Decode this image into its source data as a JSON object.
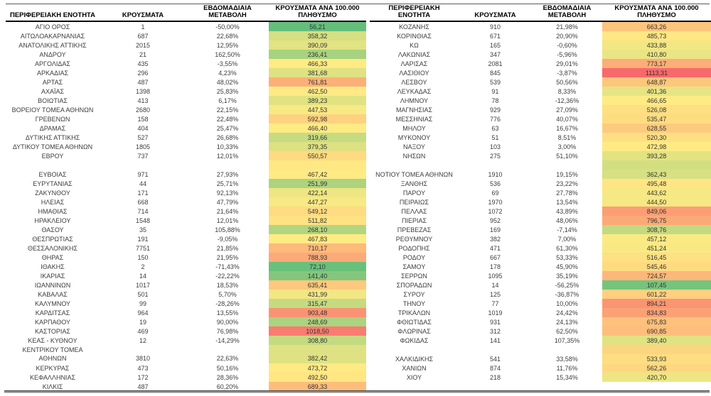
{
  "header": {
    "left": {
      "region": "ΠΕΡΙΦΕΡΕΙΑΚΗ ΕΝΟΤΗΤΑ",
      "cases": "ΚΡΟΥΣΜΑΤΑ",
      "change": "ΕΒΔΟΜΑΔΙΑΙΑ\nΜΕΤΑΒΟΛΗ",
      "rate": "ΚΡΟΥΣΜΑΤΑ ΑΝΑ 100.000\nΠΛΗΘΥΣΜΟ"
    },
    "right": {
      "region": "ΠΕΡΙΦΕΡΕΙΑΚΗ\nΕΝΟΤΗΤΑ",
      "cases": "ΚΡΟΥΣΜΑΤΑ",
      "change": "ΕΒΔΟΜΑΔΙΑΙΑ\nΜΕΤΑΒΟΛΗ",
      "rate": "ΚΡΟΥΣΜΑΤΑ ΑΝΑ 100.000\nΠΛΗΘΥΣΜΟ"
    }
  },
  "color_scale": {
    "min_color": "#63BE7B",
    "mid_color": "#FFEB84",
    "max_color": "#F8696B"
  },
  "tables": {
    "left": [
      {
        "name": "ΑΓΙΟ ΟΡΟΣ",
        "cases": "1",
        "change": "-50,00%",
        "rate": "56,21"
      },
      {
        "name": "ΑΙΤΩΛΟΑΚΑΡΝΑΝΙΑΣ",
        "cases": "687",
        "change": "22,68%",
        "rate": "358,32"
      },
      {
        "name": "ΑΝΑΤΟΛΙΚΗΣ ΑΤΤΙΚΗΣ",
        "cases": "2015",
        "change": "12,95%",
        "rate": "390,09"
      },
      {
        "name": "ΑΝΔΡΟΥ",
        "cases": "21",
        "change": "162,50%",
        "rate": "236,41"
      },
      {
        "name": "ΑΡΓΟΛΙΔΑΣ",
        "cases": "435",
        "change": "-3,55%",
        "rate": "466,33"
      },
      {
        "name": "ΑΡΚΑΔΙΑΣ",
        "cases": "296",
        "change": "4,23%",
        "rate": "381,68"
      },
      {
        "name": "ΑΡΤΑΣ",
        "cases": "487",
        "change": "48,02%",
        "rate": "761,81"
      },
      {
        "name": "ΑΧΑΪΑΣ",
        "cases": "1398",
        "change": "25,83%",
        "rate": "462,50"
      },
      {
        "name": "ΒΟΙΩΤΙΑΣ",
        "cases": "413",
        "change": "6,17%",
        "rate": "389,23"
      },
      {
        "name": "ΒΟΡΕΙΟΥ ΤΟΜΕΑ ΑΘΗΝΩΝ",
        "cases": "2680",
        "change": "22,15%",
        "rate": "447,53"
      },
      {
        "name": "ΓΡΕΒΕΝΩΝ",
        "cases": "158",
        "change": "22,48%",
        "rate": "592,98"
      },
      {
        "name": "ΔΡΑΜΑΣ",
        "cases": "404",
        "change": "25,47%",
        "rate": "466,40"
      },
      {
        "name": "ΔΥΤΙΚΗΣ ΑΤΤΙΚΗΣ",
        "cases": "527",
        "change": "26,68%",
        "rate": "319,66"
      },
      {
        "name": "ΔΥΤΙΚΟΥ ΤΟΜΕΑ ΑΘΗΝΩΝ",
        "cases": "1805",
        "change": "10,33%",
        "rate": "379,35"
      },
      {
        "name": "ΕΒΡΟΥ",
        "cases": "737",
        "change": "12,01%",
        "rate": "550,57"
      },
      {
        "spacer": true,
        "rate_color": "#FEE884"
      },
      {
        "name": "ΕΥΒΟΙΑΣ",
        "cases": "971",
        "change": "27,93%",
        "rate": "467,42"
      },
      {
        "name": "ΕΥΡΥΤΑΝΙΑΣ",
        "cases": "44",
        "change": "25,71%",
        "rate": "251,99"
      },
      {
        "name": "ΖΑΚΥΝΘΟΥ",
        "cases": "171",
        "change": "92,13%",
        "rate": "422,14"
      },
      {
        "name": "ΗΛΕΙΑΣ",
        "cases": "668",
        "change": "47,79%",
        "rate": "447,27"
      },
      {
        "name": "ΗΜΑΘΙΑΣ",
        "cases": "714",
        "change": "21,64%",
        "rate": "549,12"
      },
      {
        "name": "ΗΡΑΚΛΕΙΟΥ",
        "cases": "1548",
        "change": "12,01%",
        "rate": "511,82"
      },
      {
        "name": "ΘΑΣΟΥ",
        "cases": "35",
        "change": "105,88%",
        "rate": "268,10"
      },
      {
        "name": "ΘΕΣΠΡΩΤΙΑΣ",
        "cases": "191",
        "change": "-9,05%",
        "rate": "467,83"
      },
      {
        "name": "ΘΕΣΣΑΛΟΝΙΚΗΣ",
        "cases": "7751",
        "change": "21,85%",
        "rate": "710,17"
      },
      {
        "name": "ΘΗΡΑΣ",
        "cases": "150",
        "change": "21,95%",
        "rate": "788,93"
      },
      {
        "name": "ΙΘΑΚΗΣ",
        "cases": "2",
        "change": "-71,43%",
        "rate": "72,10"
      },
      {
        "name": "ΙΚΑΡΙΑΣ",
        "cases": "14",
        "change": "-22,22%",
        "rate": "141,40"
      },
      {
        "name": "ΙΩΑΝΝΙΝΩΝ",
        "cases": "1017",
        "change": "18,53%",
        "rate": "635,41"
      },
      {
        "name": "ΚΑΒΑΛΑΣ",
        "cases": "501",
        "change": "5,70%",
        "rate": "431,99"
      },
      {
        "name": "ΚΑΛΥΜΝΟΥ",
        "cases": "99",
        "change": "-28,26%",
        "rate": "315,47"
      },
      {
        "name": "ΚΑΡΔΙΤΣΑΣ",
        "cases": "964",
        "change": "13,55%",
        "rate": "903,48"
      },
      {
        "name": "ΚΑΡΠΑΘΟΥ",
        "cases": "19",
        "change": "90,00%",
        "rate": "248,69"
      },
      {
        "name": "ΚΑΣΤΟΡΙΑΣ",
        "cases": "469",
        "change": "76,98%",
        "rate": "1018,50"
      },
      {
        "name": "ΚΕΑΣ - ΚΥΘΝΟΥ",
        "cases": "12",
        "change": "-14,29%",
        "rate": "308,80"
      },
      {
        "name": "ΚΕΝΤΡΙΚΟΥ ΤΟΜΕΑ\nΑΘΗΝΩΝ",
        "tall": true,
        "cases": "3810",
        "change": "22,63%",
        "rate": "382,42"
      },
      {
        "name": "ΚΕΡΚΥΡΑΣ",
        "cases": "473",
        "change": "50,16%",
        "rate": "473,72"
      },
      {
        "name": "ΚΕΦΑΛΛΗΝΙΑΣ",
        "cases": "172",
        "change": "28,36%",
        "rate": "492,50"
      },
      {
        "name": "ΚΙΛΚΙΣ",
        "cases": "487",
        "change": "60,20%",
        "rate": "689,33"
      }
    ],
    "right": [
      {
        "name": "ΚΟΖΑΝΗΣ",
        "cases": "910",
        "change": "21,98%",
        "rate": "663,26"
      },
      {
        "name": "ΚΟΡΙΝΘΙΑΣ",
        "cases": "671",
        "change": "20,90%",
        "rate": "485,73"
      },
      {
        "name": "ΚΩ",
        "cases": "165",
        "change": "-0,60%",
        "rate": "433,88"
      },
      {
        "name": "ΛΑΚΩΝΙΑΣ",
        "cases": "347",
        "change": "-5,96%",
        "rate": "410,80"
      },
      {
        "name": "ΛΑΡΙΣΑΣ",
        "cases": "2081",
        "change": "29,01%",
        "rate": "773,17"
      },
      {
        "name": "ΛΑΣΙΘΙΟΥ",
        "cases": "845",
        "change": "-3,87%",
        "rate": "1113,31"
      },
      {
        "name": "ΛΕΣΒΟΥ",
        "cases": "539",
        "change": "50,56%",
        "rate": "648,87"
      },
      {
        "name": "ΛΕΥΚΑΔΑΣ",
        "cases": "91",
        "change": "8,33%",
        "rate": "401,36"
      },
      {
        "name": "ΛΗΜΝΟΥ",
        "cases": "78",
        "change": "-12,36%",
        "rate": "466,65"
      },
      {
        "name": "ΜΑΓΝΗΣΙΑΣ",
        "cases": "929",
        "change": "27,09%",
        "rate": "526,08"
      },
      {
        "name": "ΜΕΣΣΗΝΙΑΣ",
        "cases": "776",
        "change": "40,07%",
        "rate": "535,47"
      },
      {
        "name": "ΜΗΛΟΥ",
        "cases": "63",
        "change": "16,67%",
        "rate": "628,55"
      },
      {
        "name": "ΜΥΚΟΝΟΥ",
        "cases": "51",
        "change": "8,51%",
        "rate": "520,30"
      },
      {
        "name": "ΝΑΞΟΥ",
        "cases": "103",
        "change": "3,00%",
        "rate": "472,98"
      },
      {
        "name": "ΝΗΣΩΝ",
        "cases": "275",
        "change": "51,10%",
        "rate": "393,28"
      },
      {
        "spacer": true,
        "rate_color": "#D3DE81"
      },
      {
        "name": "ΝΟΤΙΟΥ ΤΟΜΕΑ ΑΘΗΝΩΝ",
        "cases": "1910",
        "change": "19,15%",
        "rate": "362,43"
      },
      {
        "name": "ΞΑΝΘΗΣ",
        "cases": "536",
        "change": "23,22%",
        "rate": "495,48"
      },
      {
        "name": "ΠΑΡΟΥ",
        "cases": "69",
        "change": "27,78%",
        "rate": "443,62"
      },
      {
        "name": "ΠΕΙΡΑΙΩΣ",
        "cases": "1970",
        "change": "13,54%",
        "rate": "444,50"
      },
      {
        "name": "ΠΕΛΛΑΣ",
        "cases": "1072",
        "change": "43,89%",
        "rate": "849,06"
      },
      {
        "name": "ΠΙΕΡΙΑΣ",
        "cases": "952",
        "change": "48,06%",
        "rate": "796,75"
      },
      {
        "name": "ΠΡΕΒΕΖΑΣ",
        "cases": "169",
        "change": "-7,14%",
        "rate": "308,76"
      },
      {
        "name": "ΡΕΘΥΜΝΟΥ",
        "cases": "382",
        "change": "7,00%",
        "rate": "457,12"
      },
      {
        "name": "ΡΟΔΟΠΗΣ",
        "cases": "471",
        "change": "61,30%",
        "rate": "451,24"
      },
      {
        "name": "ΡΟΔΟΥ",
        "cases": "667",
        "change": "53,33%",
        "rate": "516,45"
      },
      {
        "name": "ΣΑΜΟΥ",
        "cases": "178",
        "change": "45,90%",
        "rate": "545,46"
      },
      {
        "name": "ΣΕΡΡΩΝ",
        "cases": "1095",
        "change": "35,19%",
        "rate": "724,57"
      },
      {
        "name": "ΣΠΟΡΑΔΩΝ",
        "cases": "14",
        "change": "-56,25%",
        "rate": "107,45"
      },
      {
        "name": "ΣΥΡΟΥ",
        "cases": "125",
        "change": "-36,87%",
        "rate": "601,22"
      },
      {
        "name": "ΤΗΝΟΥ",
        "cases": "77",
        "change": "10,00%",
        "rate": "894,21"
      },
      {
        "name": "ΤΡΙΚΑΛΩΝ",
        "cases": "1019",
        "change": "24,42%",
        "rate": "834,83"
      },
      {
        "name": "ΦΘΙΩΤΙΔΑΣ",
        "cases": "931",
        "change": "24,13%",
        "rate": "675,83"
      },
      {
        "name": "ΦΛΩΡΙΝΑΣ",
        "cases": "312",
        "change": "62,50%",
        "rate": "690,85"
      },
      {
        "name": "ΦΩΚΙΔΑΣ",
        "cases": "141",
        "change": "107,35%",
        "rate": "389,40"
      },
      {
        "spacer": true,
        "rate_color": "#FBD57F"
      },
      {
        "name": "ΧΑΛΚΙΔΙΚΗΣ",
        "cases": "541",
        "change": "33,58%",
        "rate": "533,93"
      },
      {
        "name": "ΧΑΝΙΩΝ",
        "cases": "874",
        "change": "11,76%",
        "rate": "562,26"
      },
      {
        "name": "ΧΙΟΥ",
        "cases": "218",
        "change": "15,34%",
        "rate": "420,70"
      },
      {
        "spacer": true
      }
    ]
  }
}
